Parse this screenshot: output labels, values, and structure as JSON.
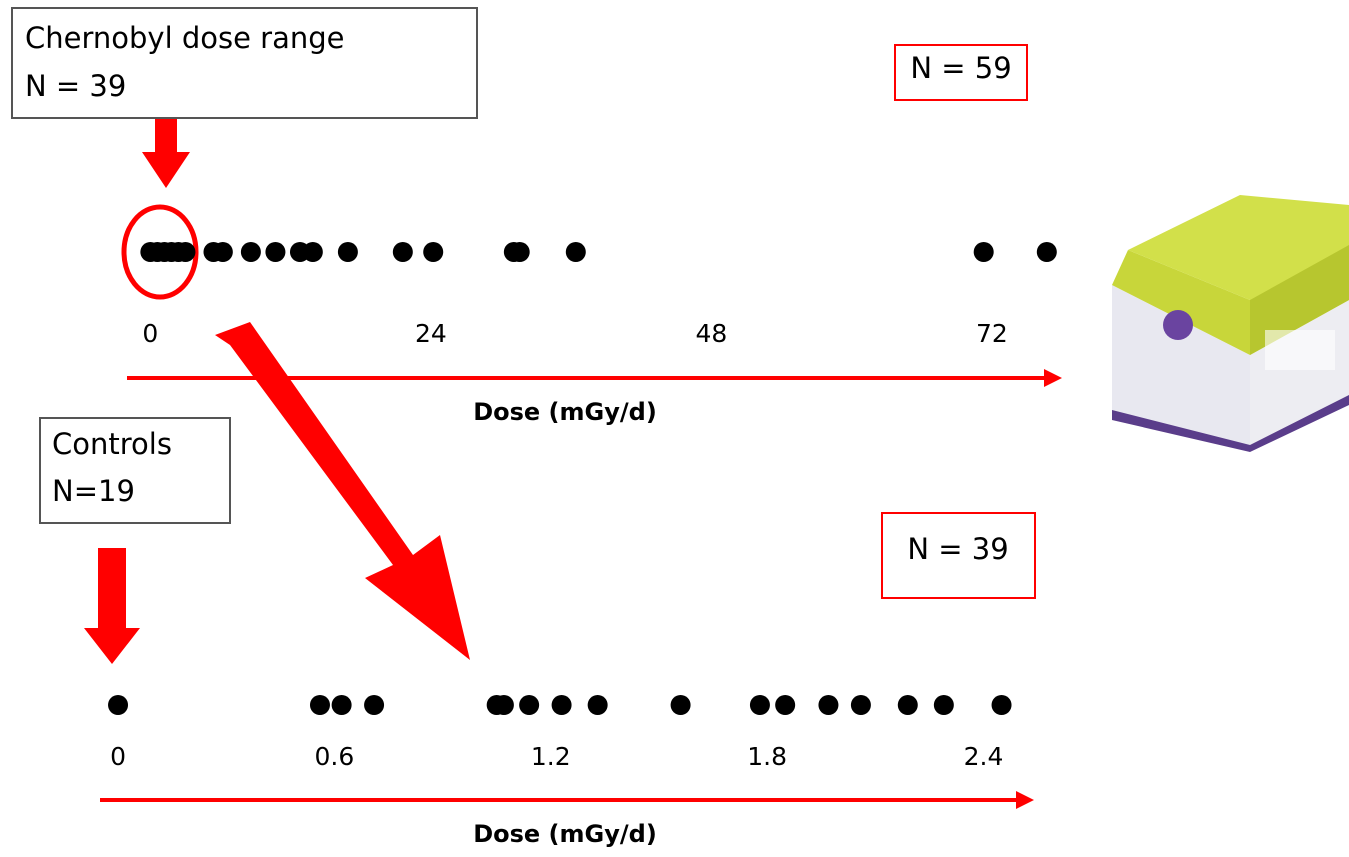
{
  "chart_data": [
    {
      "type": "strip",
      "xlabel": "Dose (mGy/d)",
      "xlim": [
        -2,
        78
      ],
      "xticks": [
        0,
        24,
        48,
        72
      ],
      "color": "#000000",
      "axis_color": "#ff0000",
      "values": [
        0,
        0.6,
        1.2,
        1.8,
        2.4,
        3,
        5.4,
        6.2,
        8.6,
        10.7,
        12.8,
        13.9,
        16.9,
        21.6,
        24.2,
        31.1,
        31.6,
        36.4,
        71.3,
        76.7
      ],
      "annotations": [
        {
          "text": [
            "Chernobyl dose range",
            "N = 39"
          ]
        },
        {
          "text": [
            "N = 59"
          ]
        }
      ]
    },
    {
      "type": "strip",
      "xlabel": "Dose (mGy/d)",
      "xlim": [
        -0.05,
        2.54
      ],
      "xticks": [
        0,
        0.6,
        1.2,
        1.8,
        2.4
      ],
      "color": "#000000",
      "axis_color": "#ff0000",
      "values": [
        0,
        0.56,
        0.62,
        0.71,
        1.05,
        1.07,
        1.14,
        1.23,
        1.33,
        1.56,
        1.78,
        1.85,
        1.97,
        2.06,
        2.19,
        2.29,
        2.45
      ],
      "annotations": [
        {
          "text": [
            "Controls",
            "N=19"
          ]
        },
        {
          "text": [
            "N = 39"
          ]
        }
      ]
    }
  ]
}
